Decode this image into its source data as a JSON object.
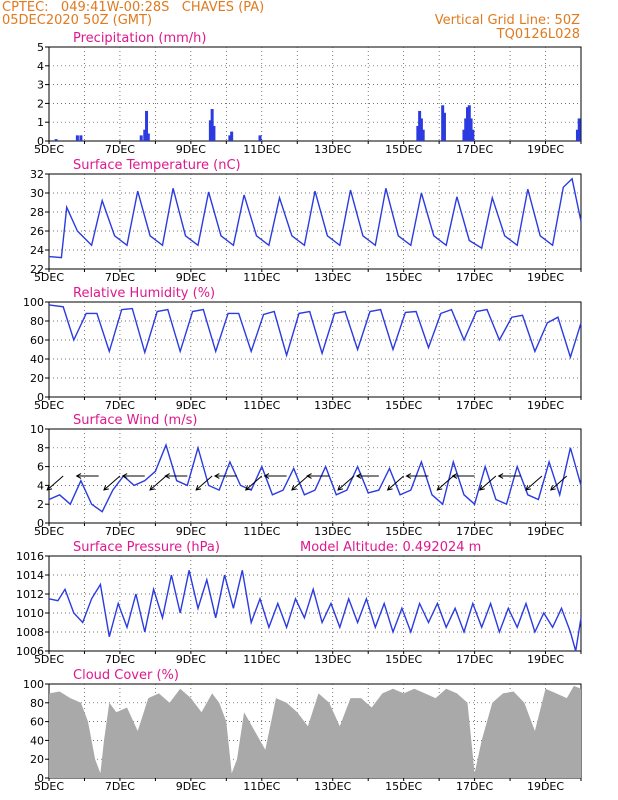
{
  "header": {
    "line1": "CPTEC:   049:41W-00:28S   CHAVES (PA)",
    "line2": "05DEC2020 50Z (GMT)",
    "grid_note": "Vertical Grid Line: 50Z",
    "model_code": "TQ0126L028"
  },
  "colors": {
    "header": "#e07a1f",
    "title": "#e0188e",
    "line": "#2b3be0",
    "bar": "#2b3be0",
    "cloud": "#a9a9a9",
    "wind_arrow": "#000000"
  },
  "chart_data": [
    {
      "id": "precip",
      "type": "bar",
      "title": "Precipitation (mm/h)",
      "ylim": [
        0,
        5
      ],
      "yticks": [
        0,
        1,
        2,
        3,
        4,
        5
      ],
      "x_day_ticks": [
        "5DEC",
        "7DEC",
        "9DEC",
        "11DEC",
        "13DEC",
        "15DEC",
        "17DEC",
        "19DEC"
      ],
      "xlim_days": [
        0,
        15.0
      ],
      "x": [
        0.2,
        0.8,
        0.9,
        2.6,
        2.7,
        2.75,
        2.8,
        4.55,
        4.6,
        4.65,
        5.1,
        5.15,
        5.95,
        10.4,
        10.45,
        10.5,
        10.55,
        11.1,
        11.15,
        11.7,
        11.75,
        11.8,
        11.85,
        11.9,
        11.95,
        14.9,
        14.95
      ],
      "values": [
        0.1,
        0.3,
        0.3,
        0.3,
        0.6,
        1.6,
        0.4,
        1.1,
        1.7,
        0.8,
        0.3,
        0.5,
        0.3,
        0.8,
        1.6,
        1.2,
        0.6,
        1.9,
        1.5,
        0.6,
        1.2,
        1.8,
        1.9,
        1.2,
        0.6,
        0.6,
        1.2
      ]
    },
    {
      "id": "temp",
      "type": "line",
      "title": "Surface Temperature (nC)",
      "ylim": [
        22,
        32
      ],
      "yticks": [
        22,
        24,
        26,
        28,
        30,
        32
      ],
      "x_day_ticks": [
        "5DEC",
        "7DEC",
        "9DEC",
        "11DEC",
        "13DEC",
        "15DEC",
        "17DEC",
        "19DEC"
      ],
      "xlim_days": [
        0,
        15.0
      ],
      "x": [
        0,
        0.35,
        0.5,
        0.8,
        1.2,
        1.5,
        1.85,
        2.2,
        2.5,
        2.85,
        3.2,
        3.5,
        3.85,
        4.2,
        4.5,
        4.85,
        5.2,
        5.5,
        5.85,
        6.2,
        6.5,
        6.85,
        7.2,
        7.5,
        7.85,
        8.2,
        8.5,
        8.85,
        9.2,
        9.5,
        9.85,
        10.2,
        10.5,
        10.85,
        11.2,
        11.5,
        11.85,
        12.2,
        12.5,
        12.85,
        13.2,
        13.5,
        13.85,
        14.2,
        14.5,
        14.75,
        15.0
      ],
      "values": [
        23.3,
        23.2,
        28.5,
        26.0,
        24.5,
        29.2,
        25.5,
        24.5,
        30.2,
        25.5,
        24.5,
        30.5,
        25.5,
        24.5,
        30.1,
        25.5,
        24.5,
        29.8,
        25.5,
        24.5,
        29.5,
        25.5,
        24.5,
        30.2,
        25.5,
        24.5,
        30.3,
        25.5,
        24.5,
        30.5,
        25.5,
        24.5,
        30.0,
        25.5,
        24.5,
        29.6,
        25.0,
        24.2,
        29.5,
        25.5,
        24.5,
        30.4,
        25.5,
        24.5,
        30.6,
        31.5,
        27.0
      ]
    },
    {
      "id": "rh",
      "type": "line",
      "title": "Relative Humidity (%)",
      "ylim": [
        0,
        100
      ],
      "yticks": [
        0,
        20,
        40,
        60,
        80,
        100
      ],
      "x_day_ticks": [
        "5DEC",
        "7DEC",
        "9DEC",
        "11DEC",
        "13DEC",
        "15DEC",
        "17DEC",
        "19DEC"
      ],
      "xlim_days": [
        0,
        15.0
      ],
      "x": [
        0,
        0.4,
        0.7,
        1.05,
        1.35,
        1.7,
        2.05,
        2.35,
        2.7,
        3.05,
        3.35,
        3.7,
        4.05,
        4.35,
        4.7,
        5.05,
        5.35,
        5.7,
        6.05,
        6.35,
        6.7,
        7.05,
        7.35,
        7.7,
        8.05,
        8.35,
        8.7,
        9.05,
        9.35,
        9.7,
        10.05,
        10.35,
        10.7,
        11.05,
        11.35,
        11.7,
        12.05,
        12.35,
        12.7,
        13.05,
        13.35,
        13.7,
        14.05,
        14.35,
        14.7,
        15.0
      ],
      "values": [
        97,
        95,
        60,
        88,
        88,
        48,
        92,
        93,
        47,
        90,
        92,
        48,
        90,
        92,
        48,
        88,
        88,
        48,
        87,
        90,
        44,
        88,
        90,
        46,
        88,
        90,
        50,
        90,
        92,
        50,
        89,
        90,
        52,
        88,
        92,
        60,
        90,
        92,
        60,
        84,
        86,
        48,
        78,
        84,
        42,
        78
      ]
    },
    {
      "id": "wind",
      "type": "line",
      "title": "Surface Wind (m/s)",
      "ylim": [
        0,
        10
      ],
      "yticks": [
        0,
        2,
        4,
        6,
        8,
        10
      ],
      "x_day_ticks": [
        "5DEC",
        "7DEC",
        "9DEC",
        "11DEC",
        "13DEC",
        "15DEC",
        "17DEC",
        "19DEC"
      ],
      "xlim_days": [
        0,
        15.0
      ],
      "x": [
        0,
        0.3,
        0.6,
        0.9,
        1.2,
        1.5,
        1.8,
        2.1,
        2.4,
        2.7,
        3.0,
        3.3,
        3.6,
        3.9,
        4.2,
        4.5,
        4.8,
        5.1,
        5.4,
        5.7,
        6.0,
        6.3,
        6.6,
        6.9,
        7.2,
        7.5,
        7.8,
        8.1,
        8.4,
        8.7,
        9.0,
        9.3,
        9.6,
        9.9,
        10.2,
        10.5,
        10.8,
        11.1,
        11.4,
        11.7,
        12.0,
        12.3,
        12.6,
        12.9,
        13.2,
        13.5,
        13.8,
        14.1,
        14.4,
        14.7,
        15.0
      ],
      "values": [
        2.5,
        3.0,
        2.0,
        4.5,
        2.0,
        1.2,
        3.5,
        5.0,
        4.0,
        4.5,
        5.5,
        8.3,
        4.5,
        4.0,
        8.0,
        4.0,
        3.5,
        6.5,
        4.0,
        3.5,
        6.0,
        3.0,
        3.5,
        5.8,
        3.0,
        3.5,
        6.0,
        3.0,
        3.5,
        6.0,
        3.2,
        3.5,
        5.8,
        3.0,
        3.5,
        6.5,
        3.0,
        2.0,
        6.5,
        3.0,
        2.0,
        6.0,
        2.5,
        2.0,
        6.0,
        3.0,
        2.5,
        6.5,
        3.0,
        8.0,
        4.0
      ],
      "arrows": [
        {
          "x": 0.4,
          "dir": "sw"
        },
        {
          "x": 1.4,
          "dir": "w"
        },
        {
          "x": 2.0,
          "dir": "sw"
        },
        {
          "x": 2.7,
          "dir": "w"
        },
        {
          "x": 3.3,
          "dir": "sw"
        },
        {
          "x": 3.9,
          "dir": "w"
        },
        {
          "x": 4.6,
          "dir": "sw"
        },
        {
          "x": 5.3,
          "dir": "w"
        },
        {
          "x": 6.0,
          "dir": "sw"
        },
        {
          "x": 6.7,
          "dir": "w"
        },
        {
          "x": 7.3,
          "dir": "sw"
        },
        {
          "x": 7.9,
          "dir": "w"
        },
        {
          "x": 8.6,
          "dir": "sw"
        },
        {
          "x": 9.3,
          "dir": "w"
        },
        {
          "x": 10.0,
          "dir": "sw"
        },
        {
          "x": 10.7,
          "dir": "w"
        },
        {
          "x": 11.4,
          "dir": "sw"
        },
        {
          "x": 12.0,
          "dir": "w"
        },
        {
          "x": 12.6,
          "dir": "sw"
        },
        {
          "x": 13.3,
          "dir": "w"
        },
        {
          "x": 13.9,
          "dir": "sw"
        },
        {
          "x": 14.6,
          "dir": "sw"
        }
      ]
    },
    {
      "id": "pressure",
      "type": "line",
      "title": "Surface Pressure (hPa)",
      "annotation": "Model Altitude: 0.492024 m",
      "ylim": [
        1006,
        1016
      ],
      "yticks": [
        1006,
        1008,
        1010,
        1012,
        1014,
        1016
      ],
      "x_day_ticks": [
        "5DEC",
        "7DEC",
        "9DEC",
        "11DEC",
        "13DEC",
        "15DEC",
        "17DEC",
        "19DEC"
      ],
      "xlim_days": [
        0,
        15.0
      ],
      "x": [
        0,
        0.25,
        0.45,
        0.7,
        0.95,
        1.2,
        1.45,
        1.7,
        1.95,
        2.2,
        2.45,
        2.7,
        2.95,
        3.2,
        3.45,
        3.7,
        3.95,
        4.2,
        4.45,
        4.7,
        4.95,
        5.2,
        5.45,
        5.7,
        5.95,
        6.2,
        6.45,
        6.7,
        6.95,
        7.2,
        7.45,
        7.7,
        7.95,
        8.2,
        8.45,
        8.7,
        8.95,
        9.2,
        9.45,
        9.7,
        9.95,
        10.2,
        10.45,
        10.7,
        10.95,
        11.2,
        11.45,
        11.7,
        11.95,
        12.2,
        12.45,
        12.7,
        12.95,
        13.2,
        13.45,
        13.7,
        13.95,
        14.2,
        14.45,
        14.7,
        14.85,
        15.0
      ],
      "values": [
        1011.5,
        1011.3,
        1012.5,
        1010.0,
        1009.0,
        1011.5,
        1013.0,
        1007.5,
        1011.0,
        1008.5,
        1012.0,
        1008.0,
        1012.5,
        1009.5,
        1014.0,
        1010.0,
        1014.5,
        1010.5,
        1013.5,
        1009.5,
        1014.0,
        1010.5,
        1014.5,
        1009.0,
        1011.5,
        1008.5,
        1011.0,
        1008.5,
        1011.5,
        1009.5,
        1012.5,
        1009.0,
        1011.0,
        1008.5,
        1011.5,
        1009.0,
        1011.5,
        1008.5,
        1011.0,
        1008.0,
        1010.5,
        1008.0,
        1011.0,
        1009.0,
        1011.0,
        1008.5,
        1010.5,
        1008.0,
        1011.0,
        1008.5,
        1011.0,
        1008.0,
        1010.5,
        1008.5,
        1011.0,
        1008.0,
        1010.0,
        1008.5,
        1010.5,
        1008.0,
        1006.0,
        1009.5
      ]
    },
    {
      "id": "cloud",
      "type": "area",
      "title": "Cloud Cover (%)",
      "ylim": [
        0,
        100
      ],
      "yticks": [
        0,
        20,
        40,
        60,
        80,
        100
      ],
      "x_day_ticks": [
        "5DEC",
        "7DEC",
        "9DEC",
        "11DEC",
        "13DEC",
        "15DEC",
        "17DEC",
        "19DEC"
      ],
      "xlim_days": [
        0,
        15.0
      ],
      "x": [
        0,
        0.3,
        0.6,
        0.9,
        1.1,
        1.3,
        1.45,
        1.55,
        1.7,
        1.9,
        2.2,
        2.5,
        2.8,
        3.1,
        3.4,
        3.7,
        4.0,
        4.3,
        4.6,
        4.8,
        5.0,
        5.15,
        5.3,
        5.5,
        5.8,
        6.1,
        6.4,
        6.7,
        7.0,
        7.3,
        7.6,
        7.9,
        8.2,
        8.5,
        8.8,
        9.1,
        9.4,
        9.7,
        10.0,
        10.3,
        10.6,
        10.9,
        11.2,
        11.5,
        11.8,
        12.0,
        12.2,
        12.5,
        12.8,
        13.1,
        13.4,
        13.7,
        14.0,
        14.3,
        14.6,
        14.8,
        15.0
      ],
      "values": [
        90,
        92,
        85,
        80,
        60,
        20,
        5,
        40,
        80,
        70,
        75,
        50,
        85,
        90,
        80,
        95,
        85,
        70,
        90,
        80,
        60,
        5,
        20,
        70,
        50,
        30,
        85,
        80,
        70,
        55,
        90,
        80,
        55,
        85,
        85,
        75,
        90,
        95,
        90,
        95,
        90,
        85,
        95,
        90,
        80,
        5,
        40,
        80,
        90,
        92,
        80,
        50,
        95,
        90,
        85,
        98,
        95
      ]
    }
  ]
}
